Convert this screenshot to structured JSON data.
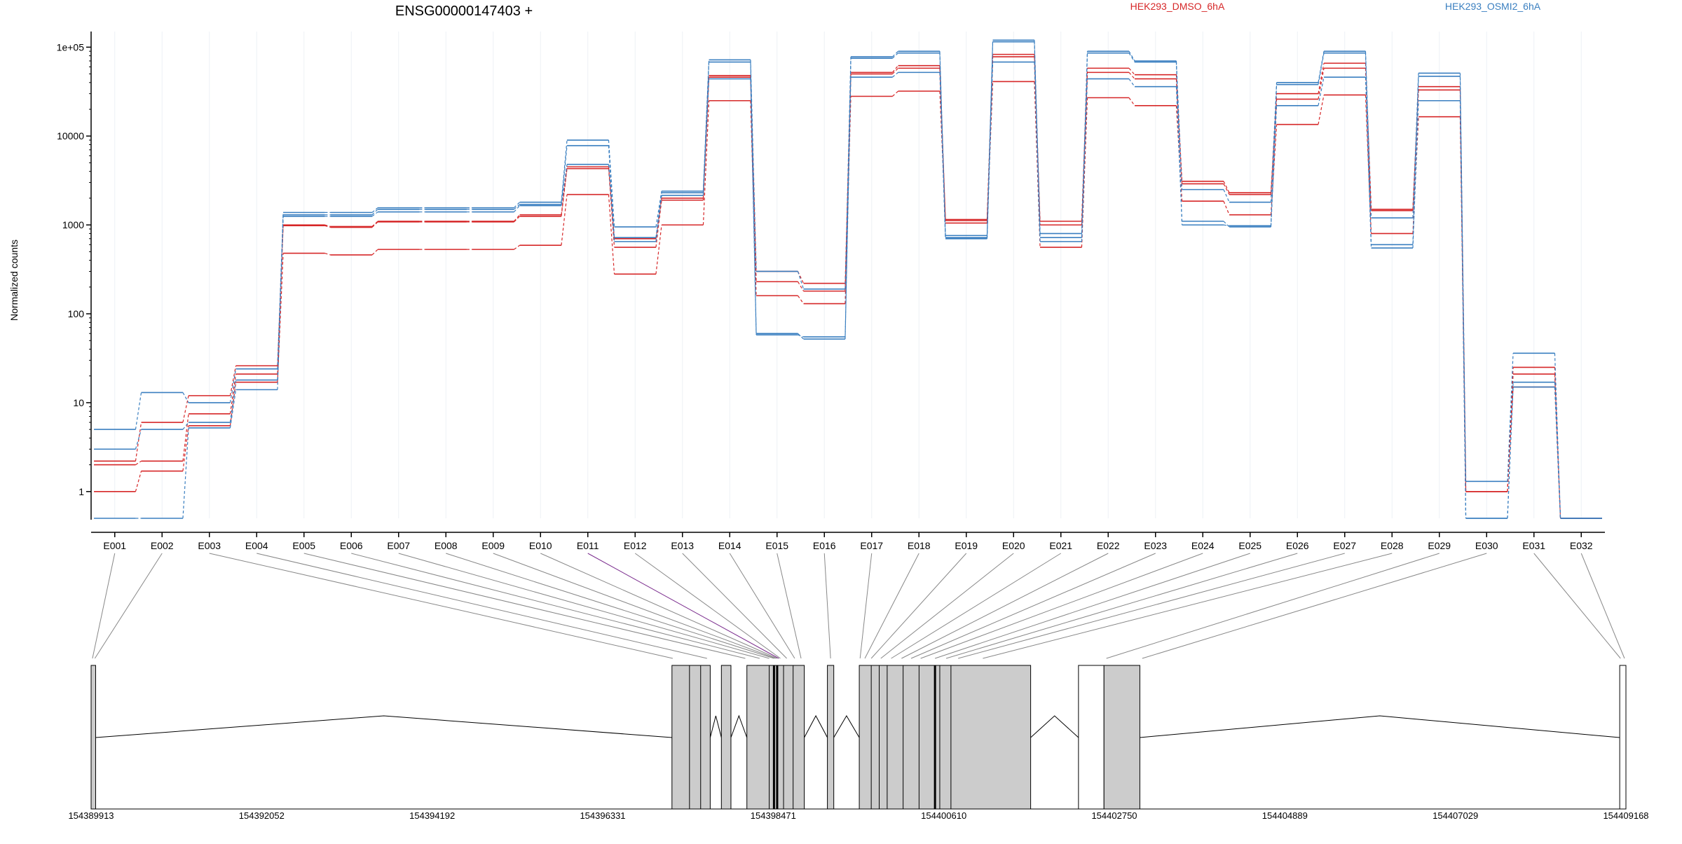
{
  "title": "ENSG00000147403 +",
  "ylabel": "Normalized counts",
  "legend": [
    {
      "name": "HEK293_DMSO_6hA",
      "color": "#d62728"
    },
    {
      "name": "HEK293_OSMI2_6hA",
      "color": "#3a7fc0"
    }
  ],
  "chart_data": {
    "type": "line",
    "title": "ENSG00000147403 +",
    "ylabel": "Normalized counts",
    "y_scale": "log",
    "ylim": [
      0.5,
      150000
    ],
    "y_ticks": [
      1,
      10,
      100,
      1000,
      10000,
      100000
    ],
    "y_tick_labels": [
      "1",
      "10",
      "100",
      "1000",
      "10000",
      "1e+05"
    ],
    "categories": [
      "E001",
      "E002",
      "E003",
      "E004",
      "E005",
      "E006",
      "E007",
      "E008",
      "E009",
      "E010",
      "E011",
      "E012",
      "E013",
      "E014",
      "E015",
      "E016",
      "E017",
      "E018",
      "E019",
      "E020",
      "E021",
      "E022",
      "E023",
      "E024",
      "E025",
      "E026",
      "E027",
      "E028",
      "E029",
      "E030",
      "E031",
      "E032"
    ],
    "series": [
      {
        "name": "HEK293_DMSO_6hA",
        "color": "#d62728",
        "values": [
          1.0,
          1.7,
          5.5,
          17,
          480,
          460,
          530,
          530,
          530,
          590,
          2200,
          280,
          1000,
          25000,
          160,
          130,
          28000,
          32000,
          1050,
          41000,
          560,
          27000,
          22000,
          1850,
          1300,
          13500,
          29000,
          800,
          16500,
          1.0,
          15,
          0.5
        ]
      },
      {
        "name": "HEK293_DMSO_6hA",
        "color": "#d62728",
        "values": [
          2.0,
          2.2,
          7.5,
          21,
          980,
          940,
          1080,
          1080,
          1080,
          1250,
          4300,
          560,
          1900,
          46000,
          230,
          180,
          50000,
          58000,
          1120,
          78000,
          1000,
          52000,
          44000,
          2900,
          2200,
          26000,
          58000,
          1450,
          33000,
          1.0,
          21,
          0.5
        ]
      },
      {
        "name": "HEK293_DMSO_6hA",
        "color": "#d62728",
        "values": [
          2.2,
          6.0,
          12,
          26,
          1000,
          960,
          1100,
          1100,
          1100,
          1300,
          4500,
          700,
          2000,
          48000,
          300,
          220,
          52000,
          62000,
          1150,
          83000,
          1100,
          58000,
          49000,
          3100,
          2300,
          30000,
          66000,
          1500,
          36000,
          1.0,
          25,
          0.5
        ]
      },
      {
        "name": "HEK293_OSMI2_6hA",
        "color": "#3a7fc0",
        "values": [
          0.5,
          0.5,
          5.2,
          14,
          1250,
          1250,
          1400,
          1400,
          1400,
          1650,
          4800,
          650,
          2150,
          44000,
          58,
          55,
          46000,
          52000,
          700,
          68000,
          650,
          44000,
          36000,
          1100,
          950,
          22000,
          46000,
          550,
          25000,
          0.5,
          15,
          0.5
        ]
      },
      {
        "name": "HEK293_OSMI2_6hA",
        "color": "#3a7fc0",
        "values": [
          3.0,
          5.0,
          6.0,
          18,
          1300,
          1300,
          1500,
          1500,
          1500,
          1700,
          7800,
          720,
          2300,
          68000,
          60,
          52,
          75000,
          86000,
          720,
          115000,
          720,
          86000,
          68000,
          1000,
          980,
          38000,
          86000,
          600,
          47000,
          0.5,
          17,
          0.5
        ]
      },
      {
        "name": "HEK293_OSMI2_6hA",
        "color": "#3a7fc0",
        "values": [
          5.0,
          13,
          10,
          24,
          1380,
          1380,
          1560,
          1560,
          1560,
          1800,
          9000,
          950,
          2400,
          72000,
          300,
          190,
          78000,
          90000,
          760,
          120000,
          800,
          90000,
          70000,
          2500,
          1800,
          40000,
          90000,
          1200,
          51000,
          1.3,
          36,
          0.5
        ]
      }
    ],
    "grid": "vertical",
    "legend_position": "top"
  },
  "gene_model": {
    "coordinate_labels": [
      "154389913",
      "154392052",
      "154394192",
      "154396331",
      "154398471",
      "154400610",
      "154402750",
      "154404889",
      "154407029",
      "154409168"
    ],
    "exon_boxes": [
      {
        "start": 154389913,
        "end": 154389970,
        "filled": true
      },
      {
        "start": 154397200,
        "end": 154397680,
        "filled": true
      },
      {
        "start": 154397820,
        "end": 154397940,
        "filled": true
      },
      {
        "start": 154398140,
        "end": 154398860,
        "filled": true
      },
      {
        "start": 154399150,
        "end": 154399230,
        "filled": true
      },
      {
        "start": 154399550,
        "end": 154401700,
        "filled": true
      },
      {
        "start": 154402300,
        "end": 154402620,
        "filled": false
      },
      {
        "start": 154402620,
        "end": 154403070,
        "filled": true
      },
      {
        "start": 154409090,
        "end": 154409168,
        "filled": false
      }
    ]
  }
}
